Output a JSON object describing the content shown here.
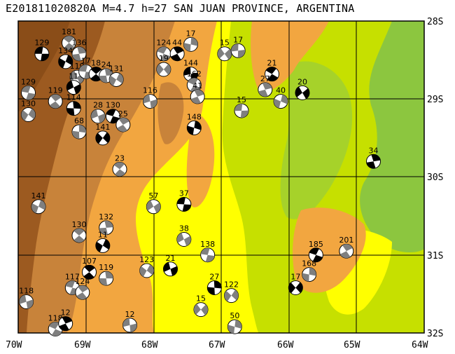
{
  "title": "E201811020820A  M=4.7  h=27  SAN JUAN PROVINCE, ARGENTINA",
  "axes": {
    "lon_labels": [
      "70W",
      "69W",
      "68W",
      "67W",
      "66W",
      "65W",
      "64W"
    ],
    "lat_labels": [
      "28S",
      "29S",
      "30S",
      "31S",
      "32S"
    ]
  },
  "colors": {
    "frame": "#000000",
    "grid": "#000000",
    "lowland_green": "#8cc63f",
    "plain_lime": "#c6e000",
    "yellow": "#ffff00",
    "orange": "#f2a640",
    "brown": "#c8833a",
    "dark_brown": "#9c5a20"
  },
  "events": [
    {
      "label": "129",
      "lon": -69.65,
      "lat": 28.42
    },
    {
      "label": "181",
      "lon": -69.25,
      "lat": 28.28
    },
    {
      "label": "136",
      "lon": -69.1,
      "lat": 28.42
    },
    {
      "label": "134",
      "lon": -69.3,
      "lat": 28.52
    },
    {
      "label": "119",
      "lon": -69.13,
      "lat": 28.72
    },
    {
      "label": "17",
      "lon": -69.0,
      "lat": 28.65
    },
    {
      "label": "18",
      "lon": -68.85,
      "lat": 28.68
    },
    {
      "label": "24",
      "lon": -68.7,
      "lat": 28.7
    },
    {
      "label": "131",
      "lon": -68.55,
      "lat": 28.75
    },
    {
      "label": "11",
      "lon": -69.18,
      "lat": 28.85
    },
    {
      "label": "129",
      "lon": -69.85,
      "lat": 28.92
    },
    {
      "label": "119",
      "lon": -69.45,
      "lat": 29.03
    },
    {
      "label": "114",
      "lon": -69.18,
      "lat": 29.12
    },
    {
      "label": "130",
      "lon": -69.85,
      "lat": 29.2
    },
    {
      "label": "28",
      "lon": -68.82,
      "lat": 29.22
    },
    {
      "label": "130",
      "lon": -68.6,
      "lat": 29.22
    },
    {
      "label": "25",
      "lon": -68.45,
      "lat": 29.33
    },
    {
      "label": "68",
      "lon": -69.1,
      "lat": 29.42
    },
    {
      "label": "141",
      "lon": -68.75,
      "lat": 29.5
    },
    {
      "label": "116",
      "lon": -68.05,
      "lat": 29.03
    },
    {
      "label": "124",
      "lon": -67.85,
      "lat": 28.42
    },
    {
      "label": "44",
      "lon": -67.65,
      "lat": 28.42
    },
    {
      "label": "17",
      "lon": -67.45,
      "lat": 28.3
    },
    {
      "label": "19",
      "lon": -67.85,
      "lat": 28.62
    },
    {
      "label": "144",
      "lon": -67.45,
      "lat": 28.68
    },
    {
      "label": "162",
      "lon": -67.4,
      "lat": 28.82
    },
    {
      "label": "41",
      "lon": -67.35,
      "lat": 28.97
    },
    {
      "label": "148",
      "lon": -67.4,
      "lat": 29.37
    },
    {
      "label": "15",
      "lon": -66.95,
      "lat": 28.42
    },
    {
      "label": "17",
      "lon": -66.75,
      "lat": 28.38
    },
    {
      "label": "21",
      "lon": -66.25,
      "lat": 28.68
    },
    {
      "label": "27",
      "lon": -66.35,
      "lat": 28.88
    },
    {
      "label": "40",
      "lon": -66.12,
      "lat": 29.03
    },
    {
      "label": "20",
      "lon": -65.8,
      "lat": 28.92
    },
    {
      "label": "15",
      "lon": -66.7,
      "lat": 29.15
    },
    {
      "label": "23",
      "lon": -68.5,
      "lat": 29.9
    },
    {
      "label": "34",
      "lon": -64.75,
      "lat": 29.8
    },
    {
      "label": "141",
      "lon": -69.7,
      "lat": 30.38
    },
    {
      "label": "57",
      "lon": -68.0,
      "lat": 30.38
    },
    {
      "label": "37",
      "lon": -67.55,
      "lat": 30.35
    },
    {
      "label": "130",
      "lon": -69.1,
      "lat": 30.75
    },
    {
      "label": "132",
      "lon": -68.7,
      "lat": 30.65
    },
    {
      "label": "11",
      "lon": -68.75,
      "lat": 30.88
    },
    {
      "label": "38",
      "lon": -67.55,
      "lat": 30.8
    },
    {
      "label": "138",
      "lon": -67.2,
      "lat": 31.0
    },
    {
      "label": "107",
      "lon": -68.95,
      "lat": 31.22
    },
    {
      "label": "119",
      "lon": -68.7,
      "lat": 31.3
    },
    {
      "label": "123",
      "lon": -68.1,
      "lat": 31.2
    },
    {
      "label": "21",
      "lon": -67.75,
      "lat": 31.18
    },
    {
      "label": "117",
      "lon": -69.2,
      "lat": 31.42
    },
    {
      "label": "124",
      "lon": -69.05,
      "lat": 31.48
    },
    {
      "label": "27",
      "lon": -67.1,
      "lat": 31.42
    },
    {
      "label": "122",
      "lon": -66.85,
      "lat": 31.52
    },
    {
      "label": "118",
      "lon": -69.88,
      "lat": 31.6
    },
    {
      "label": "185",
      "lon": -65.6,
      "lat": 31.0
    },
    {
      "label": "201",
      "lon": -65.15,
      "lat": 30.95
    },
    {
      "label": "168",
      "lon": -65.7,
      "lat": 31.25
    },
    {
      "label": "17",
      "lon": -65.9,
      "lat": 31.42
    },
    {
      "label": "12",
      "lon": -68.35,
      "lat": 31.9
    },
    {
      "label": "118",
      "lon": -69.45,
      "lat": 31.95
    },
    {
      "label": "12",
      "lon": -69.3,
      "lat": 31.88
    },
    {
      "label": "50",
      "lon": -66.8,
      "lat": 31.92
    },
    {
      "label": "15",
      "lon": -67.3,
      "lat": 31.7
    }
  ]
}
